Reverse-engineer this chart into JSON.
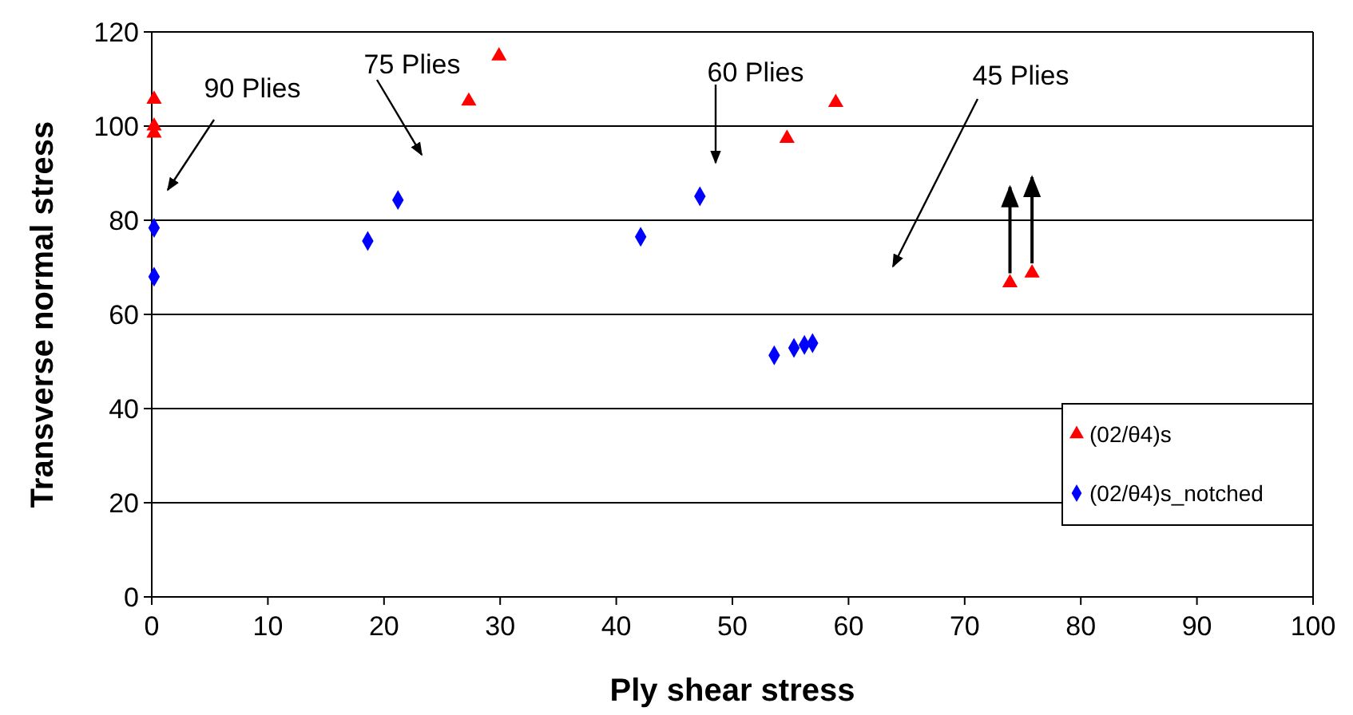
{
  "chart_data": {
    "type": "scatter",
    "xlabel": "Ply shear stress",
    "ylabel": "Transverse normal stress",
    "xlim": [
      0,
      100
    ],
    "ylim": [
      0,
      120
    ],
    "xticks": [
      0,
      10,
      20,
      30,
      40,
      50,
      60,
      70,
      80,
      90,
      100
    ],
    "yticks": [
      0,
      20,
      40,
      60,
      80,
      100,
      120
    ],
    "grid": "y",
    "legend": "right",
    "series": [
      {
        "name": "(02/θ4)s",
        "color": "#ff0000",
        "marker": "triangle",
        "x": [
          0.2,
          0.2,
          0.2,
          27.3,
          29.9,
          54.7,
          58.9,
          73.9,
          75.8
        ],
        "values": [
          105.7,
          100,
          98.5,
          105.3,
          114.9,
          97.4,
          105,
          66.7,
          68.8
        ]
      },
      {
        "name": "(02/θ4)s_notched",
        "color": "#0000ff",
        "marker": "diamond",
        "x": [
          0.2,
          0.2,
          18.6,
          21.2,
          42.1,
          47.2,
          53.6,
          55.3,
          56.2,
          56.9
        ],
        "values": [
          78.4,
          68,
          75.6,
          84.3,
          76.5,
          85.1,
          51.3,
          52.9,
          53.5,
          53.9
        ]
      }
    ],
    "annotations": [
      "90 Plies",
      "75 Plies",
      "60 Plies",
      "45 Plies"
    ]
  }
}
